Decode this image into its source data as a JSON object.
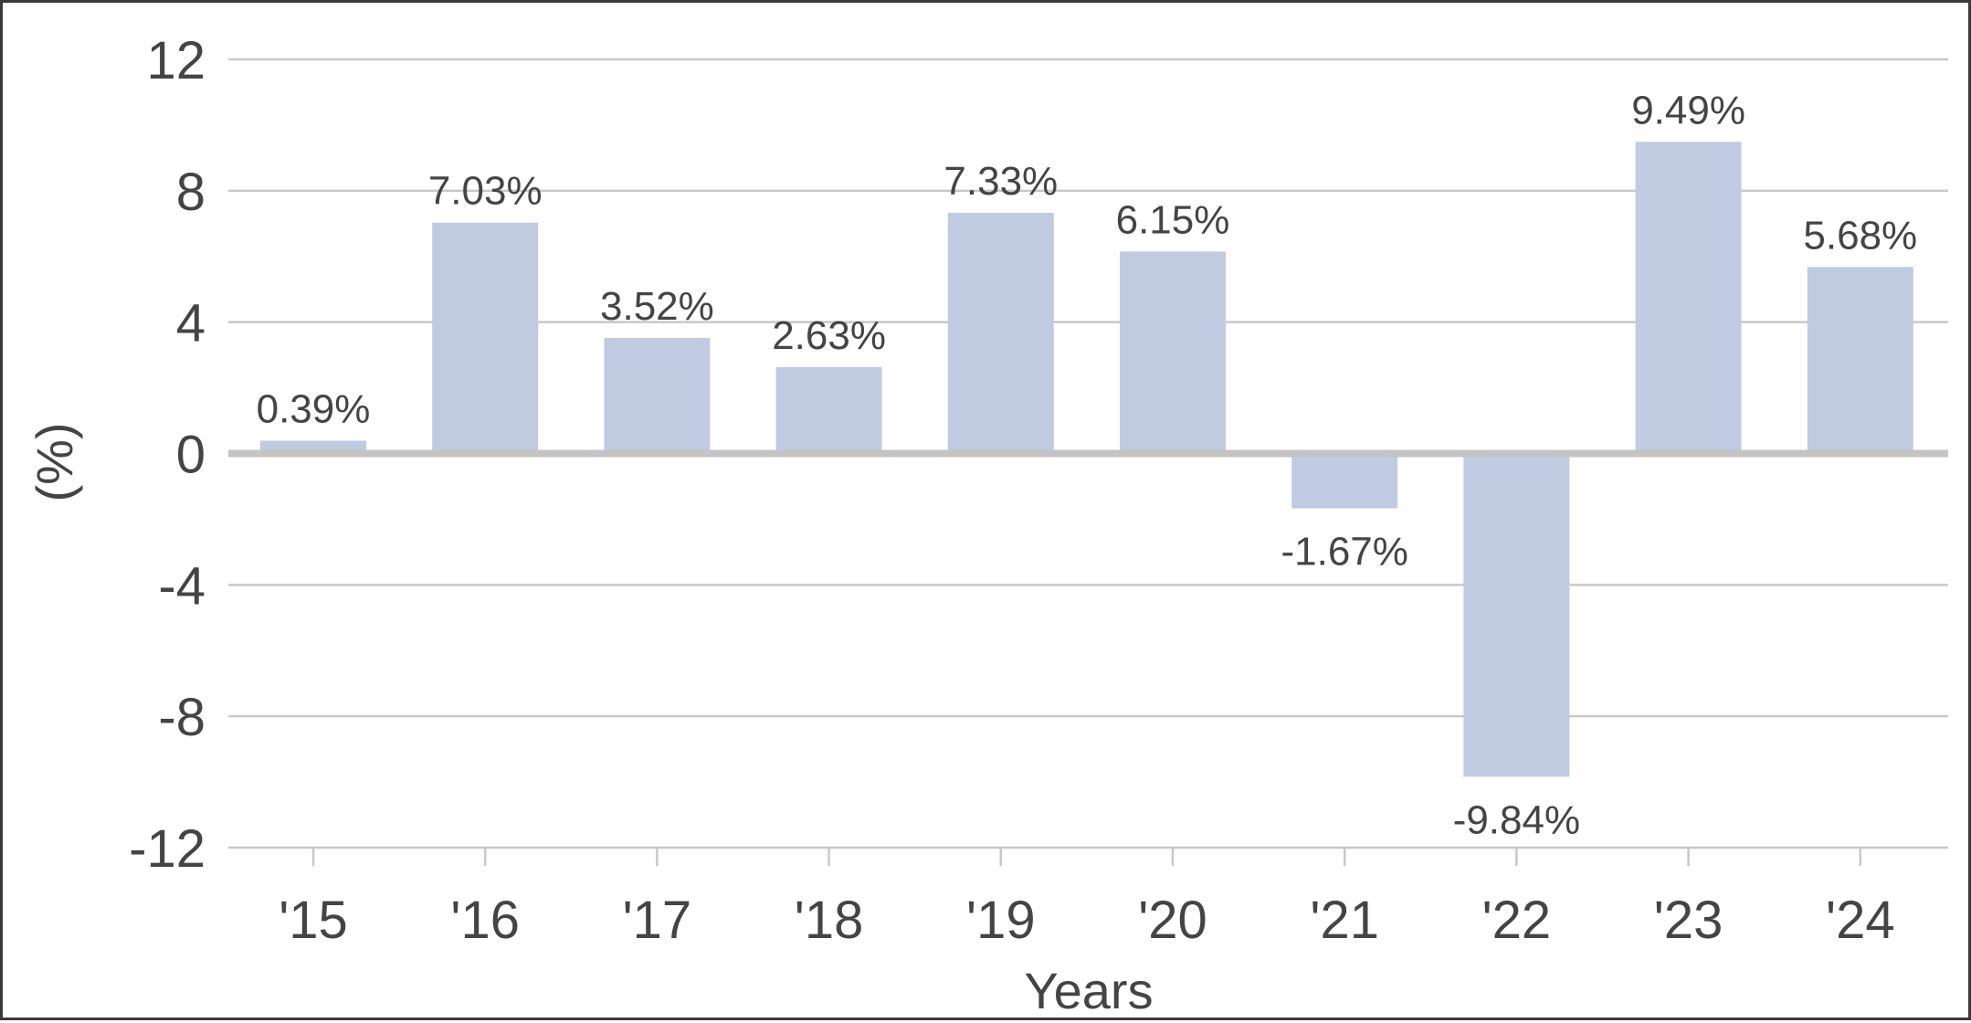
{
  "chart_data": {
    "type": "bar",
    "categories": [
      "'15",
      "'16",
      "'17",
      "'18",
      "'19",
      "'20",
      "'21",
      "'22",
      "'23",
      "'24"
    ],
    "values": [
      0.39,
      7.03,
      3.52,
      2.63,
      7.33,
      6.15,
      -1.67,
      -9.84,
      9.49,
      5.68
    ],
    "data_labels": [
      "0.39%",
      "7.03%",
      "3.52%",
      "2.63%",
      "7.33%",
      "6.15%",
      "-1.67%",
      "-9.84%",
      "9.49%",
      "5.68%"
    ],
    "title": "",
    "xlabel": "Years",
    "ylabel": "(%)",
    "ylim": [
      -12,
      12
    ],
    "yticks": [
      12,
      8,
      4,
      0,
      -4,
      -8,
      -12
    ],
    "ytick_labels": [
      "12",
      "8",
      "4",
      "0",
      "-4",
      "-8",
      "-12"
    ],
    "grid": true,
    "bar_color": "#c0cbe2",
    "grid_color": "#c8c8c8",
    "zero_line_color": "#c4c4c4",
    "text_color": "#444444",
    "border_color": "#3a3a3a"
  }
}
